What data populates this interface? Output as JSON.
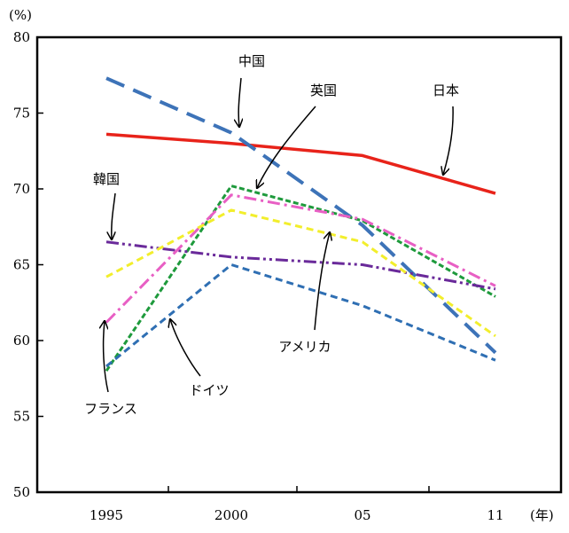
{
  "chart_data": {
    "type": "line",
    "title": "",
    "xlabel": "",
    "ylabel": "",
    "y_unit": "(%)",
    "x_unit": "(年)",
    "x": [
      1995,
      2000,
      2005,
      2011
    ],
    "x_tick_labels": [
      "1995",
      "2000",
      "05",
      "11"
    ],
    "ylim": [
      50,
      80
    ],
    "y_ticks": [
      50,
      55,
      60,
      65,
      70,
      75,
      80
    ],
    "grid": false,
    "series": [
      {
        "name": "日本",
        "values": [
          73.6,
          73.0,
          72.2,
          69.7
        ],
        "color": "#e8231a",
        "style": "solid"
      },
      {
        "name": "中国",
        "values": [
          77.3,
          73.7,
          67.6,
          59.2
        ],
        "color": "#3d73b8",
        "style": "longdash"
      },
      {
        "name": "英国",
        "values": [
          58.0,
          70.2,
          67.9,
          62.9
        ],
        "color": "#1e9a3c",
        "style": "shortdash"
      },
      {
        "name": "韓国",
        "values": [
          66.5,
          65.5,
          65.0,
          63.4
        ],
        "color": "#6a2a9a",
        "style": "dashdotdot"
      },
      {
        "name": "フランス",
        "values": [
          61.2,
          69.6,
          68.0,
          63.6
        ],
        "color": "#e85fc4",
        "style": "dashdot"
      },
      {
        "name": "アメリカ",
        "values": [
          64.2,
          68.6,
          66.5,
          60.3
        ],
        "color": "#f2ee2c",
        "style": "dashed"
      },
      {
        "name": "ドイツ",
        "values": [
          58.3,
          65.0,
          62.3,
          58.7
        ],
        "color": "#2f6fb3",
        "style": "dashed"
      }
    ]
  }
}
